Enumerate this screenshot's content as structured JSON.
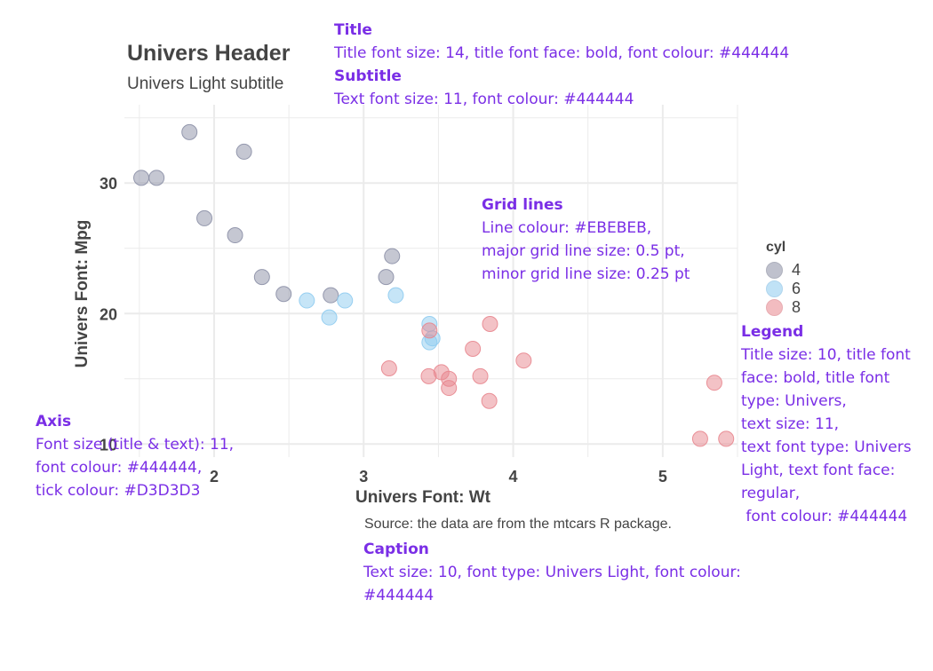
{
  "title": "Univers Header",
  "subtitle": "Univers Light subtitle",
  "caption": "Source: the data are from the mtcars R package.",
  "chart_data": {
    "type": "scatter",
    "xlabel": "Univers Font: Wt",
    "ylabel": "Univers Font: Mpg",
    "xlim": [
      1.4,
      5.5
    ],
    "ylim": [
      9,
      36
    ],
    "x_ticks": [
      "2",
      "3",
      "4",
      "5"
    ],
    "y_ticks": [
      "10",
      "20",
      "30"
    ],
    "grid": true,
    "legend_position": "right",
    "legend_title": "cyl",
    "series": [
      {
        "name": "4",
        "color": "#8b8fa6",
        "points": [
          {
            "x": 2.32,
            "y": 22.8
          },
          {
            "x": 3.19,
            "y": 24.4
          },
          {
            "x": 3.15,
            "y": 22.8
          },
          {
            "x": 2.2,
            "y": 32.4
          },
          {
            "x": 1.615,
            "y": 30.4
          },
          {
            "x": 1.835,
            "y": 33.9
          },
          {
            "x": 2.465,
            "y": 21.5
          },
          {
            "x": 1.935,
            "y": 27.3
          },
          {
            "x": 2.14,
            "y": 26.0
          },
          {
            "x": 1.513,
            "y": 30.4
          },
          {
            "x": 2.78,
            "y": 21.4
          }
        ]
      },
      {
        "name": "6",
        "color": "#8ecbf0",
        "points": [
          {
            "x": 2.62,
            "y": 21.0
          },
          {
            "x": 2.875,
            "y": 21.0
          },
          {
            "x": 3.215,
            "y": 21.4
          },
          {
            "x": 3.46,
            "y": 18.1
          },
          {
            "x": 3.44,
            "y": 19.2
          },
          {
            "x": 3.44,
            "y": 17.8
          },
          {
            "x": 2.77,
            "y": 19.7
          }
        ]
      },
      {
        "name": "8",
        "color": "#e8868e",
        "points": [
          {
            "x": 3.44,
            "y": 18.7
          },
          {
            "x": 3.57,
            "y": 14.3
          },
          {
            "x": 4.07,
            "y": 16.4
          },
          {
            "x": 3.73,
            "y": 17.3
          },
          {
            "x": 3.78,
            "y": 15.2
          },
          {
            "x": 5.25,
            "y": 10.4
          },
          {
            "x": 5.424,
            "y": 10.4
          },
          {
            "x": 5.345,
            "y": 14.7
          },
          {
            "x": 3.52,
            "y": 15.5
          },
          {
            "x": 3.435,
            "y": 15.2
          },
          {
            "x": 3.84,
            "y": 13.3
          },
          {
            "x": 3.845,
            "y": 19.2
          },
          {
            "x": 3.17,
            "y": 15.8
          },
          {
            "x": 3.57,
            "y": 15.0
          }
        ]
      }
    ]
  },
  "annotations": {
    "title": {
      "heading": "Title",
      "line1": "Title font size: 14, title font face: bold, font colour: #444444"
    },
    "subtitle": {
      "heading": "Subtitle",
      "line1": "Text font size: 11, font colour: #444444"
    },
    "grid": {
      "heading": "Grid lines",
      "line1": "Line colour: #EBEBEB,",
      "line2": "major grid line size: 0.5 pt,",
      "line3": "minor grid line size: 0.25 pt"
    },
    "legend": {
      "heading": "Legend",
      "line1": "Title size: 10, title font",
      "line2": "face: bold, title font",
      "line3": "type: Univers,",
      "line4": "text size: 11,",
      "line5": "text font type: Univers",
      "line6": "Light, text font face:",
      "line7": "regular,",
      "line8": " font colour: #444444"
    },
    "axis": {
      "heading": "Axis",
      "line1": "Font size (title & text): 11,",
      "line2": "font colour: #444444,",
      "line3": "tick colour: #D3D3D3"
    },
    "caption": {
      "heading": "Caption",
      "line1": "Text size: 10, font type: Univers Light, font colour:",
      "line2": "#444444"
    }
  }
}
